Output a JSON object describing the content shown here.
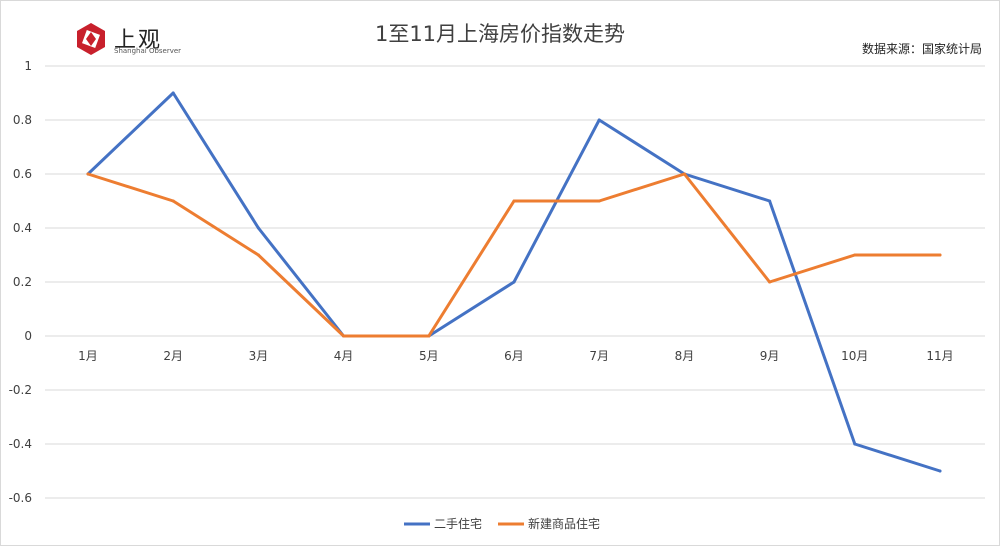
{
  "header": {
    "logo_text": "上观",
    "logo_subtext": "Shanghai Observer",
    "source": "数据来源：国家统计局"
  },
  "colors": {
    "brand_red": "#c8202c",
    "series_1": "#4472c4",
    "series_2": "#ed7d31",
    "grid": "#d9d9d9",
    "text": "#404040"
  },
  "chart_data": {
    "type": "line",
    "title": "1至11月上海房价指数走势",
    "xlabel": "",
    "ylabel": "",
    "categories": [
      "1月",
      "2月",
      "3月",
      "4月",
      "5月",
      "6月",
      "7月",
      "8月",
      "9月",
      "10月",
      "11月"
    ],
    "ylim": [
      -0.6,
      1
    ],
    "yticks": [
      "1",
      "0.8",
      "0.6",
      "0.4",
      "0.2",
      "0",
      "-0.2",
      "-0.4",
      "-0.6"
    ],
    "ytick_values": [
      1,
      0.8,
      0.6,
      0.4,
      0.2,
      0,
      -0.2,
      -0.4,
      -0.6
    ],
    "grid": true,
    "legend_position": "bottom",
    "series": [
      {
        "name": "二手住宅",
        "color": "#4472c4",
        "values": [
          0.6,
          0.9,
          0.4,
          0,
          0,
          0.2,
          0.8,
          0.6,
          0.5,
          -0.4,
          -0.5
        ]
      },
      {
        "name": "新建商品住宅",
        "color": "#ed7d31",
        "values": [
          0.6,
          0.5,
          0.3,
          0,
          0,
          0.5,
          0.5,
          0.6,
          0.2,
          0.3,
          0.3
        ]
      }
    ]
  }
}
